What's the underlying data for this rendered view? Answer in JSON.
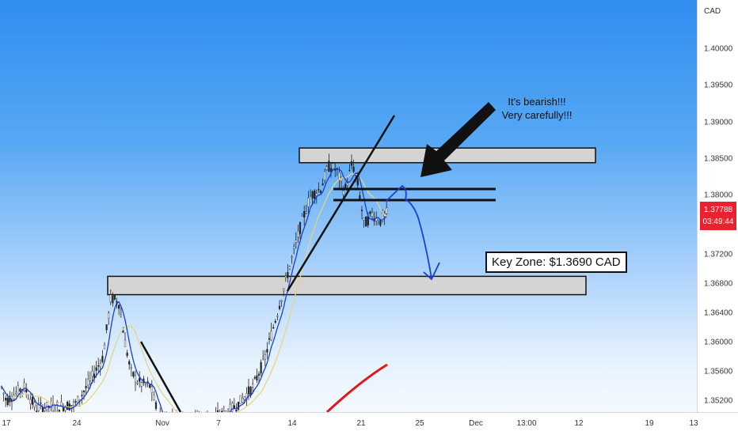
{
  "chart_data": {
    "type": "candlestick",
    "currency": "CAD",
    "price_ticks": [
      "1.40000",
      "1.39500",
      "1.39000",
      "1.38500",
      "1.38000",
      "1.37200",
      "1.36800",
      "1.36400",
      "1.36000",
      "1.35600",
      "1.35200"
    ],
    "time_ticks": [
      "17",
      "24",
      "Nov",
      "7",
      "14",
      "21",
      "25",
      "Dec",
      "13:00",
      "12",
      "19",
      "13"
    ],
    "last_price": "1.37788",
    "countdown": "03:49:44",
    "annotation_lines": [
      "It's bearish!!!",
      "Very carefully!!!"
    ],
    "key_zone_label": "Key Zone: $1.3690 CAD",
    "zones": [
      {
        "name": "resistance-zone",
        "from": 1.3845,
        "to": 1.3865
      },
      {
        "name": "support-zone",
        "from": 1.3665,
        "to": 1.369
      }
    ],
    "colors": {
      "up": "#ffffff",
      "down": "#222222",
      "ma_fast": "#1a3fd6",
      "ma_slow": "#e8d28a",
      "projection": "#1a3fd6",
      "trend": "#e01818"
    }
  }
}
